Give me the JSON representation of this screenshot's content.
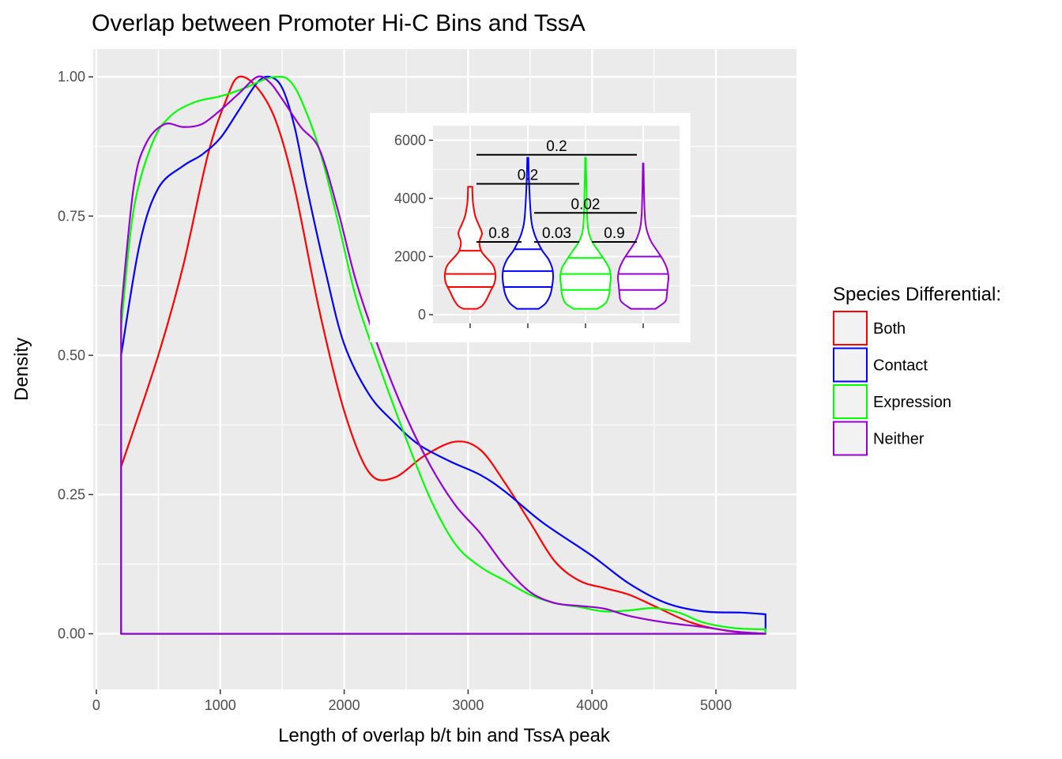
{
  "chart_data": {
    "type": "line",
    "title": "Overlap between Promoter Hi-C Bins and TssA",
    "xlabel": "Length of overlap b/t bin and TssA peak",
    "ylabel": "Density",
    "xlim": [
      -25,
      5650
    ],
    "ylim": [
      -0.1,
      1.05
    ],
    "xticks": [
      0,
      1000,
      2000,
      3000,
      4000,
      5000
    ],
    "xtick_labels": [
      "0",
      "1000",
      "2000",
      "3000",
      "4000",
      "5000"
    ],
    "yticks": [
      0,
      0.25,
      0.5,
      0.75,
      1.0
    ],
    "ytick_labels": [
      "0.00",
      "0.25",
      "0.50",
      "0.75",
      "1.00"
    ],
    "grid": true,
    "legend": {
      "title": "Species Differential:",
      "position": "right",
      "entries": [
        "Both",
        "Contact",
        "Expression",
        "Neither"
      ]
    },
    "x_range": [
      200,
      5400
    ],
    "series": [
      {
        "name": "Both",
        "color": "#ff0000",
        "end_value": 0.0,
        "points": [
          [
            200,
            0.3
          ],
          [
            500,
            0.5
          ],
          [
            700,
            0.66
          ],
          [
            900,
            0.86
          ],
          [
            1050,
            0.96
          ],
          [
            1150,
            1.0
          ],
          [
            1300,
            0.98
          ],
          [
            1450,
            0.92
          ],
          [
            1600,
            0.8
          ],
          [
            1800,
            0.58
          ],
          [
            2000,
            0.4
          ],
          [
            2200,
            0.29
          ],
          [
            2400,
            0.28
          ],
          [
            2650,
            0.32
          ],
          [
            2900,
            0.345
          ],
          [
            3100,
            0.33
          ],
          [
            3300,
            0.27
          ],
          [
            3500,
            0.2
          ],
          [
            3700,
            0.13
          ],
          [
            3900,
            0.095
          ],
          [
            4100,
            0.082
          ],
          [
            4300,
            0.07
          ],
          [
            4500,
            0.05
          ],
          [
            4800,
            0.02
          ],
          [
            5100,
            0.005
          ],
          [
            5400,
            0.0
          ]
        ]
      },
      {
        "name": "Contact",
        "color": "#0000ff",
        "end_value": 0.035,
        "points": [
          [
            200,
            0.5
          ],
          [
            350,
            0.7
          ],
          [
            500,
            0.8
          ],
          [
            700,
            0.84
          ],
          [
            850,
            0.86
          ],
          [
            1000,
            0.89
          ],
          [
            1150,
            0.94
          ],
          [
            1300,
            0.99
          ],
          [
            1400,
            1.0
          ],
          [
            1500,
            0.98
          ],
          [
            1600,
            0.91
          ],
          [
            1700,
            0.8
          ],
          [
            1850,
            0.65
          ],
          [
            2000,
            0.52
          ],
          [
            2200,
            0.43
          ],
          [
            2400,
            0.38
          ],
          [
            2600,
            0.34
          ],
          [
            2850,
            0.31
          ],
          [
            3100,
            0.285
          ],
          [
            3300,
            0.255
          ],
          [
            3600,
            0.2
          ],
          [
            4000,
            0.14
          ],
          [
            4300,
            0.09
          ],
          [
            4600,
            0.055
          ],
          [
            4900,
            0.04
          ],
          [
            5200,
            0.038
          ],
          [
            5400,
            0.035
          ]
        ]
      },
      {
        "name": "Expression",
        "color": "#00ff00",
        "end_value": 0.008,
        "points": [
          [
            200,
            0.55
          ],
          [
            300,
            0.76
          ],
          [
            450,
            0.88
          ],
          [
            600,
            0.93
          ],
          [
            800,
            0.955
          ],
          [
            1000,
            0.965
          ],
          [
            1200,
            0.98
          ],
          [
            1350,
            0.995
          ],
          [
            1450,
            1.0
          ],
          [
            1550,
            0.995
          ],
          [
            1650,
            0.96
          ],
          [
            1800,
            0.87
          ],
          [
            1950,
            0.74
          ],
          [
            2100,
            0.6
          ],
          [
            2300,
            0.47
          ],
          [
            2500,
            0.35
          ],
          [
            2700,
            0.24
          ],
          [
            2900,
            0.16
          ],
          [
            3100,
            0.12
          ],
          [
            3300,
            0.095
          ],
          [
            3500,
            0.07
          ],
          [
            3700,
            0.055
          ],
          [
            3900,
            0.048
          ],
          [
            4100,
            0.04
          ],
          [
            4300,
            0.042
          ],
          [
            4500,
            0.046
          ],
          [
            4700,
            0.038
          ],
          [
            4900,
            0.02
          ],
          [
            5150,
            0.01
          ],
          [
            5400,
            0.008
          ]
        ]
      },
      {
        "name": "Neither",
        "color": "#9400d3",
        "end_value": 0.0,
        "points": [
          [
            200,
            0.58
          ],
          [
            300,
            0.8
          ],
          [
            400,
            0.88
          ],
          [
            550,
            0.915
          ],
          [
            700,
            0.91
          ],
          [
            850,
            0.915
          ],
          [
            1000,
            0.94
          ],
          [
            1150,
            0.97
          ],
          [
            1300,
            1.0
          ],
          [
            1400,
            0.99
          ],
          [
            1500,
            0.96
          ],
          [
            1650,
            0.91
          ],
          [
            1800,
            0.87
          ],
          [
            1950,
            0.76
          ],
          [
            2100,
            0.63
          ],
          [
            2300,
            0.5
          ],
          [
            2500,
            0.39
          ],
          [
            2700,
            0.3
          ],
          [
            2900,
            0.23
          ],
          [
            3100,
            0.18
          ],
          [
            3300,
            0.12
          ],
          [
            3500,
            0.075
          ],
          [
            3700,
            0.055
          ],
          [
            3900,
            0.05
          ],
          [
            4100,
            0.045
          ],
          [
            4300,
            0.032
          ],
          [
            4600,
            0.02
          ],
          [
            4900,
            0.012
          ],
          [
            5150,
            0.004
          ],
          [
            5400,
            0.0
          ]
        ]
      }
    ],
    "inset": {
      "type": "violin",
      "ylim": [
        -300,
        6500
      ],
      "yticks": [
        0,
        2000,
        4000,
        6000
      ],
      "ytick_labels": [
        "0",
        "2000",
        "4000",
        "6000"
      ],
      "groups": [
        {
          "name": "Both",
          "color": "#ff0000",
          "quantiles": [
            950,
            1400,
            2200
          ],
          "profile": [
            [
              200,
              80
            ],
            [
              300,
              140
            ],
            [
              500,
              190
            ],
            [
              800,
              240
            ],
            [
              1100,
              290
            ],
            [
              1400,
              300
            ],
            [
              1700,
              270
            ],
            [
              2000,
              180
            ],
            [
              2200,
              130
            ],
            [
              2500,
              110
            ],
            [
              2800,
              140
            ],
            [
              3100,
              100
            ],
            [
              3400,
              60
            ],
            [
              3800,
              35
            ],
            [
              4100,
              28
            ],
            [
              4400,
              25
            ]
          ]
        },
        {
          "name": "Contact",
          "color": "#0000ff",
          "quantiles": [
            950,
            1500,
            2250
          ],
          "profile": [
            [
              200,
              120
            ],
            [
              400,
              200
            ],
            [
              700,
              250
            ],
            [
              1000,
              270
            ],
            [
              1300,
              280
            ],
            [
              1600,
              270
            ],
            [
              1900,
              230
            ],
            [
              2200,
              160
            ],
            [
              2500,
              110
            ],
            [
              2800,
              70
            ],
            [
              3200,
              40
            ],
            [
              3800,
              25
            ],
            [
              4500,
              14
            ],
            [
              5000,
              9
            ],
            [
              5400,
              6
            ]
          ]
        },
        {
          "name": "Expression",
          "color": "#00ff00",
          "quantiles": [
            850,
            1400,
            1950
          ],
          "profile": [
            [
              200,
              140
            ],
            [
              400,
              240
            ],
            [
              700,
              280
            ],
            [
              1000,
              290
            ],
            [
              1300,
              300
            ],
            [
              1600,
              280
            ],
            [
              1900,
              220
            ],
            [
              2200,
              150
            ],
            [
              2500,
              80
            ],
            [
              2800,
              40
            ],
            [
              3100,
              25
            ],
            [
              3500,
              18
            ],
            [
              4000,
              14
            ],
            [
              4500,
              10
            ],
            [
              5000,
              6
            ],
            [
              5400,
              5
            ]
          ]
        },
        {
          "name": "Neither",
          "color": "#9400d3",
          "quantiles": [
            850,
            1400,
            2000
          ],
          "profile": [
            [
              200,
              150
            ],
            [
              450,
              270
            ],
            [
              700,
              290
            ],
            [
              1000,
              300
            ],
            [
              1300,
              310
            ],
            [
              1600,
              290
            ],
            [
              1900,
              240
            ],
            [
              2200,
              170
            ],
            [
              2500,
              100
            ],
            [
              2800,
              55
            ],
            [
              3100,
              30
            ],
            [
              3500,
              18
            ],
            [
              4000,
              12
            ],
            [
              4500,
              8
            ],
            [
              5000,
              5
            ],
            [
              5200,
              4
            ]
          ]
        }
      ],
      "comparisons": [
        {
          "label": "0.8",
          "from": 0,
          "to": 1,
          "y": 2500
        },
        {
          "label": "0.03",
          "from": 1,
          "to": 2,
          "y": 2500
        },
        {
          "label": "0.9",
          "from": 2,
          "to": 3,
          "y": 2500
        },
        {
          "label": "0.02",
          "from": 1,
          "to": 3,
          "y": 3500
        },
        {
          "label": "0.2",
          "from": 0,
          "to": 2,
          "y": 4500
        },
        {
          "label": "0.2",
          "from": 0,
          "to": 3,
          "y": 5500
        }
      ]
    }
  }
}
